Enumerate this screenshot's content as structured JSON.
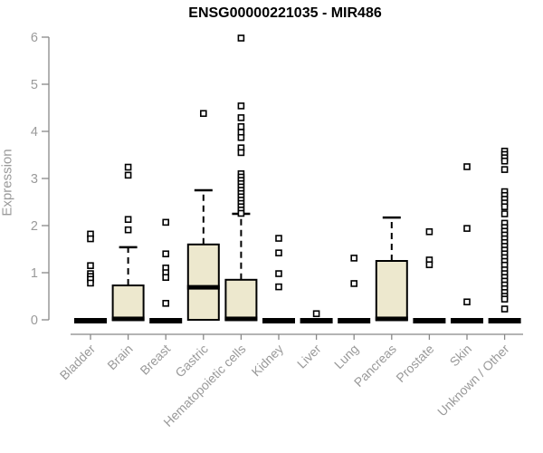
{
  "window": {
    "background": "#FFFFFF"
  },
  "chart_data": {
    "type": "boxplot",
    "title": "ENSG00000221035 - MIR486",
    "ylabel": "Expression",
    "xlabel": "",
    "ylim": [
      0,
      6
    ],
    "yticks": [
      0,
      1,
      2,
      3,
      4,
      5,
      6
    ],
    "grid": false,
    "legend": false,
    "colors": {
      "box_fill": "#EDE8CE",
      "box_stroke": "#000000",
      "median": "#000000",
      "axis": "#888888",
      "tick_label": "#9A9A9A",
      "title": "#000000",
      "background": "#FFFFFF"
    },
    "categories": [
      "Bladder",
      "Brain",
      "Breast",
      "Gastric",
      "Hematopoietic cells",
      "Kidney",
      "Liver",
      "Lung",
      "Pancreas",
      "Prostate",
      "Skin",
      "Unknown / Other"
    ],
    "boxes": [
      {
        "category": "Bladder",
        "q1": 0,
        "median": 0,
        "q3": 0,
        "whisker_low": 0,
        "whisker_high": 0,
        "outliers": [
          1.82,
          1.72,
          1.15,
          0.98,
          0.92,
          0.86,
          0.78
        ]
      },
      {
        "category": "Brain",
        "q1": 0,
        "median": 0.02,
        "q3": 0.73,
        "whisker_low": 0,
        "whisker_high": 1.54,
        "outliers": [
          3.24,
          3.07,
          2.13,
          1.91
        ]
      },
      {
        "category": "Breast",
        "q1": 0,
        "median": 0,
        "q3": 0,
        "whisker_low": 0,
        "whisker_high": 0,
        "outliers": [
          2.07,
          1.4,
          1.1,
          1.0,
          0.9,
          0.35
        ]
      },
      {
        "category": "Gastric",
        "q1": 0,
        "median": 0.69,
        "q3": 1.6,
        "whisker_low": 0,
        "whisker_high": 2.75,
        "outliers": [
          4.38
        ]
      },
      {
        "category": "Hematopoietic cells",
        "q1": 0,
        "median": 0.02,
        "q3": 0.85,
        "whisker_low": 0,
        "whisker_high": 2.25,
        "outliers": [
          5.98,
          4.54,
          4.29,
          4.1,
          3.98,
          3.87,
          3.65,
          3.55,
          3.1,
          3.03,
          2.96,
          2.89,
          2.82,
          2.75,
          2.68,
          2.61,
          2.54,
          2.47,
          2.4,
          2.33,
          2.26
        ]
      },
      {
        "category": "Kidney",
        "q1": 0,
        "median": 0,
        "q3": 0,
        "whisker_low": 0,
        "whisker_high": 0,
        "outliers": [
          1.73,
          1.42,
          0.98,
          0.7
        ]
      },
      {
        "category": "Liver",
        "q1": 0,
        "median": 0,
        "q3": 0,
        "whisker_low": 0,
        "whisker_high": 0,
        "outliers": [
          0.13
        ]
      },
      {
        "category": "Lung",
        "q1": 0,
        "median": 0,
        "q3": 0,
        "whisker_low": 0,
        "whisker_high": 0,
        "outliers": [
          1.31,
          0.77
        ]
      },
      {
        "category": "Pancreas",
        "q1": 0,
        "median": 0.02,
        "q3": 1.25,
        "whisker_low": 0,
        "whisker_high": 2.17,
        "outliers": []
      },
      {
        "category": "Prostate",
        "q1": 0,
        "median": 0,
        "q3": 0,
        "whisker_low": 0,
        "whisker_high": 0,
        "outliers": [
          1.87,
          1.27,
          1.17
        ]
      },
      {
        "category": "Skin",
        "q1": 0,
        "median": 0,
        "q3": 0,
        "whisker_low": 0,
        "whisker_high": 0,
        "outliers": [
          3.25,
          1.94,
          0.38
        ]
      },
      {
        "category": "Unknown / Other",
        "q1": 0,
        "median": 0,
        "q3": 0,
        "whisker_low": 0,
        "whisker_high": 0,
        "outliers": [
          3.58,
          3.51,
          3.44,
          3.37,
          3.19,
          2.72,
          2.64,
          2.56,
          2.48,
          2.4,
          2.25,
          2.05,
          1.96,
          1.88,
          1.8,
          1.72,
          1.64,
          1.56,
          1.48,
          1.4,
          1.32,
          1.24,
          1.16,
          1.06,
          0.98,
          0.9,
          0.82,
          0.74,
          0.66,
          0.58,
          0.5,
          0.44,
          0.23
        ]
      }
    ]
  }
}
